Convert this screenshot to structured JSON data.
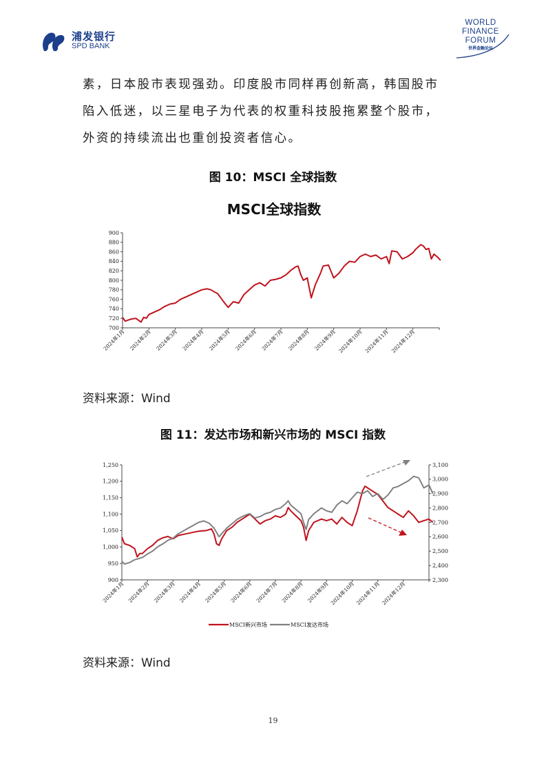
{
  "header": {
    "bank_name_cn": "浦发银行",
    "bank_name_en": "SPD BANK",
    "forum_line1": "WORLD",
    "forum_line2": "FINANCE",
    "forum_line3": "FORUM",
    "forum_cn": "世界金融论坛"
  },
  "body_text": [
    "素，日本股市表现强劲。印度股市同样再创新高，韩国股市",
    "陷入低迷，以三星电子为代表的权重科技股拖累整个股市，",
    "外资的持续流出也重创投资者信心。"
  ],
  "figure10": {
    "caption": "图 10：MSCI 全球指数",
    "source": "资料来源：Wind"
  },
  "figure11": {
    "caption": "图 11：发达市场和新兴市场的 MSCI 指数",
    "source": "资料来源：Wind"
  },
  "page_number": "19",
  "chart_data": [
    {
      "type": "line",
      "title": "MSCI全球指数",
      "xlabel": "",
      "ylabel": "",
      "ylim": [
        700,
        900
      ],
      "yticks": [
        "900",
        "880",
        "860",
        "840",
        "820",
        "800",
        "780",
        "760",
        "740",
        "720",
        "700"
      ],
      "x_tick_labels": [
        "2024年1月",
        "2024年2月",
        "2024年3月",
        "2024年4月",
        "2024年5月",
        "2024年6月",
        "2024年7月",
        "2024年8月",
        "2024年9月",
        "2024年10月",
        "2024年11月",
        "2024年12月"
      ],
      "grid": false,
      "series": [
        {
          "color": "#c0121b",
          "x": [
            0,
            0.1,
            0.3,
            0.5,
            0.7,
            0.8,
            0.9,
            1.0,
            1.2,
            1.4,
            1.6,
            1.8,
            2.0,
            2.2,
            2.4,
            2.6,
            2.8,
            3.0,
            3.2,
            3.35,
            3.5,
            3.6,
            3.7,
            3.8,
            4.0,
            4.2,
            4.4,
            4.6,
            4.8,
            5.0,
            5.2,
            5.4,
            5.6,
            5.8,
            6.0,
            6.2,
            6.4,
            6.55,
            6.65,
            6.75,
            6.85,
            7.0,
            7.05,
            7.15,
            7.3,
            7.5,
            7.6,
            7.8,
            8.0,
            8.1,
            8.2,
            8.4,
            8.6,
            8.8,
            9.0,
            9.2,
            9.4,
            9.6,
            9.8,
            10.0,
            10.1,
            10.2,
            10.4,
            10.6,
            10.8,
            11.0,
            11.1,
            11.2,
            11.3,
            11.4,
            11.5,
            11.6,
            11.7,
            11.8,
            11.95,
            12.05
          ],
          "values": [
            722,
            714,
            718,
            720,
            712,
            722,
            720,
            728,
            733,
            738,
            745,
            750,
            752,
            760,
            765,
            770,
            775,
            780,
            782,
            780,
            775,
            772,
            765,
            757,
            743,
            755,
            752,
            770,
            780,
            790,
            795,
            788,
            800,
            802,
            805,
            812,
            822,
            828,
            830,
            812,
            800,
            805,
            790,
            763,
            790,
            815,
            830,
            832,
            805,
            810,
            815,
            830,
            840,
            838,
            850,
            855,
            850,
            853,
            845,
            850,
            835,
            862,
            860,
            845,
            850,
            858,
            865,
            870,
            875,
            872,
            865,
            867,
            845,
            855,
            848,
            842
          ]
        }
      ]
    },
    {
      "type": "line",
      "title": "",
      "xlabel": "",
      "ylabel": "",
      "ylim": [
        900,
        1250
      ],
      "y2lim": [
        2300,
        3100
      ],
      "yticks": [
        "1,250",
        "1,200",
        "1,150",
        "1,100",
        "1,050",
        "1,000",
        "950",
        "900"
      ],
      "y2ticks": [
        "3,100",
        "3,000",
        "2,900",
        "2,800",
        "2,700",
        "2,600",
        "2,500",
        "2,400",
        "2,300"
      ],
      "x_tick_labels": [
        "2024年1月",
        "2024年2月",
        "2024年3月",
        "2024年4月",
        "2024年5月",
        "2024年6月",
        "2024年7月",
        "2024年8月",
        "2024年9月",
        "2024年10月",
        "2024年11月",
        "2024年12月"
      ],
      "legend_position": "bottom",
      "grid": false,
      "series": [
        {
          "name": "MSCI新兴市场",
          "axis": "left",
          "color": "#c0121b",
          "x": [
            0,
            0.1,
            0.3,
            0.5,
            0.6,
            0.7,
            0.8,
            1.0,
            1.2,
            1.4,
            1.6,
            1.8,
            2.0,
            2.2,
            2.5,
            2.8,
            3.0,
            3.3,
            3.5,
            3.6,
            3.7,
            3.8,
            3.9,
            4.1,
            4.3,
            4.5,
            4.7,
            4.9,
            5.0,
            5.2,
            5.4,
            5.6,
            5.8,
            6.0,
            6.2,
            6.4,
            6.5,
            6.6,
            6.8,
            7.0,
            7.1,
            7.2,
            7.3,
            7.5,
            7.8,
            8.0,
            8.2,
            8.4,
            8.6,
            8.8,
            9.0,
            9.2,
            9.3,
            9.4,
            9.5,
            9.6,
            9.8,
            10.0,
            10.2,
            10.4,
            10.6,
            10.8,
            11.0,
            11.2,
            11.4,
            11.6,
            11.8,
            12.0,
            12.15
          ],
          "values": [
            1030,
            1010,
            1005,
            995,
            970,
            980,
            980,
            995,
            1005,
            1020,
            1028,
            1032,
            1025,
            1035,
            1040,
            1045,
            1048,
            1050,
            1055,
            1040,
            1010,
            1005,
            1025,
            1050,
            1060,
            1075,
            1085,
            1095,
            1100,
            1085,
            1070,
            1080,
            1085,
            1095,
            1090,
            1100,
            1120,
            1110,
            1095,
            1080,
            1060,
            1020,
            1050,
            1075,
            1085,
            1080,
            1085,
            1070,
            1090,
            1075,
            1065,
            1110,
            1140,
            1170,
            1185,
            1180,
            1170,
            1160,
            1140,
            1120,
            1110,
            1100,
            1090,
            1110,
            1095,
            1075,
            1080,
            1085,
            1075
          ]
        },
        {
          "name": "MSCI发达市场",
          "axis": "right",
          "color": "#808080",
          "x": [
            0,
            0.1,
            0.3,
            0.5,
            0.7,
            0.8,
            1.0,
            1.2,
            1.4,
            1.6,
            1.8,
            2.0,
            2.2,
            2.4,
            2.6,
            2.8,
            3.0,
            3.2,
            3.4,
            3.6,
            3.7,
            3.8,
            3.9,
            4.1,
            4.3,
            4.5,
            4.7,
            4.9,
            5.0,
            5.2,
            5.4,
            5.6,
            5.8,
            6.0,
            6.2,
            6.4,
            6.5,
            6.6,
            6.8,
            7.0,
            7.1,
            7.2,
            7.3,
            7.5,
            7.8,
            8.0,
            8.2,
            8.4,
            8.6,
            8.8,
            9.0,
            9.2,
            9.4,
            9.6,
            9.8,
            10.0,
            10.2,
            10.4,
            10.6,
            10.8,
            11.0,
            11.2,
            11.4,
            11.6,
            11.8,
            12.0,
            12.15
          ],
          "values": [
            2430,
            2410,
            2420,
            2440,
            2450,
            2455,
            2480,
            2500,
            2530,
            2550,
            2575,
            2590,
            2620,
            2640,
            2660,
            2680,
            2700,
            2710,
            2695,
            2660,
            2630,
            2600,
            2620,
            2660,
            2690,
            2720,
            2740,
            2755,
            2760,
            2730,
            2740,
            2760,
            2770,
            2790,
            2800,
            2830,
            2850,
            2820,
            2790,
            2760,
            2700,
            2650,
            2720,
            2760,
            2800,
            2780,
            2770,
            2820,
            2850,
            2830,
            2870,
            2910,
            2900,
            2920,
            2880,
            2900,
            2860,
            2890,
            2940,
            2950,
            2970,
            2990,
            3020,
            3010,
            2940,
            2960,
            2900
          ]
        }
      ]
    }
  ]
}
